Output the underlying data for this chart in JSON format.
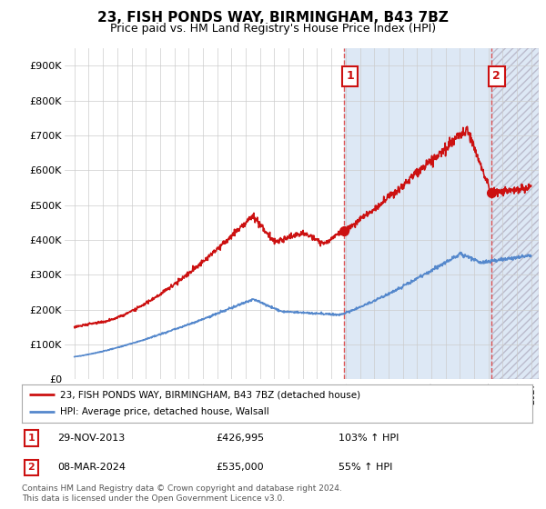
{
  "title": "23, FISH PONDS WAY, BIRMINGHAM, B43 7BZ",
  "subtitle": "Price paid vs. HM Land Registry's House Price Index (HPI)",
  "ylim": [
    0,
    950000
  ],
  "yticks": [
    0,
    100000,
    200000,
    300000,
    400000,
    500000,
    600000,
    700000,
    800000,
    900000
  ],
  "ytick_labels": [
    "£0",
    "£100K",
    "£200K",
    "£300K",
    "£400K",
    "£500K",
    "£600K",
    "£700K",
    "£800K",
    "£900K"
  ],
  "hpi_color": "#5588cc",
  "price_color": "#cc1111",
  "sale1_date": 2013.9,
  "sale1_price": 426995,
  "sale2_date": 2024.18,
  "sale2_price": 535000,
  "vline_color": "#dd4444",
  "shade_color": "#dde8f5",
  "hatch_color": "#bbbbcc",
  "legend_label1": "23, FISH PONDS WAY, BIRMINGHAM, B43 7BZ (detached house)",
  "legend_label2": "HPI: Average price, detached house, Walsall",
  "table_row1": [
    "1",
    "29-NOV-2013",
    "£426,995",
    "103% ↑ HPI"
  ],
  "table_row2": [
    "2",
    "08-MAR-2024",
    "£535,000",
    "55% ↑ HPI"
  ],
  "footer": "Contains HM Land Registry data © Crown copyright and database right 2024.\nThis data is licensed under the Open Government Licence v3.0.",
  "annotation_box_edgecolor": "#cc1111",
  "annotation_box_facecolor": "#ffffff",
  "annotation_text_color": "#cc1111"
}
